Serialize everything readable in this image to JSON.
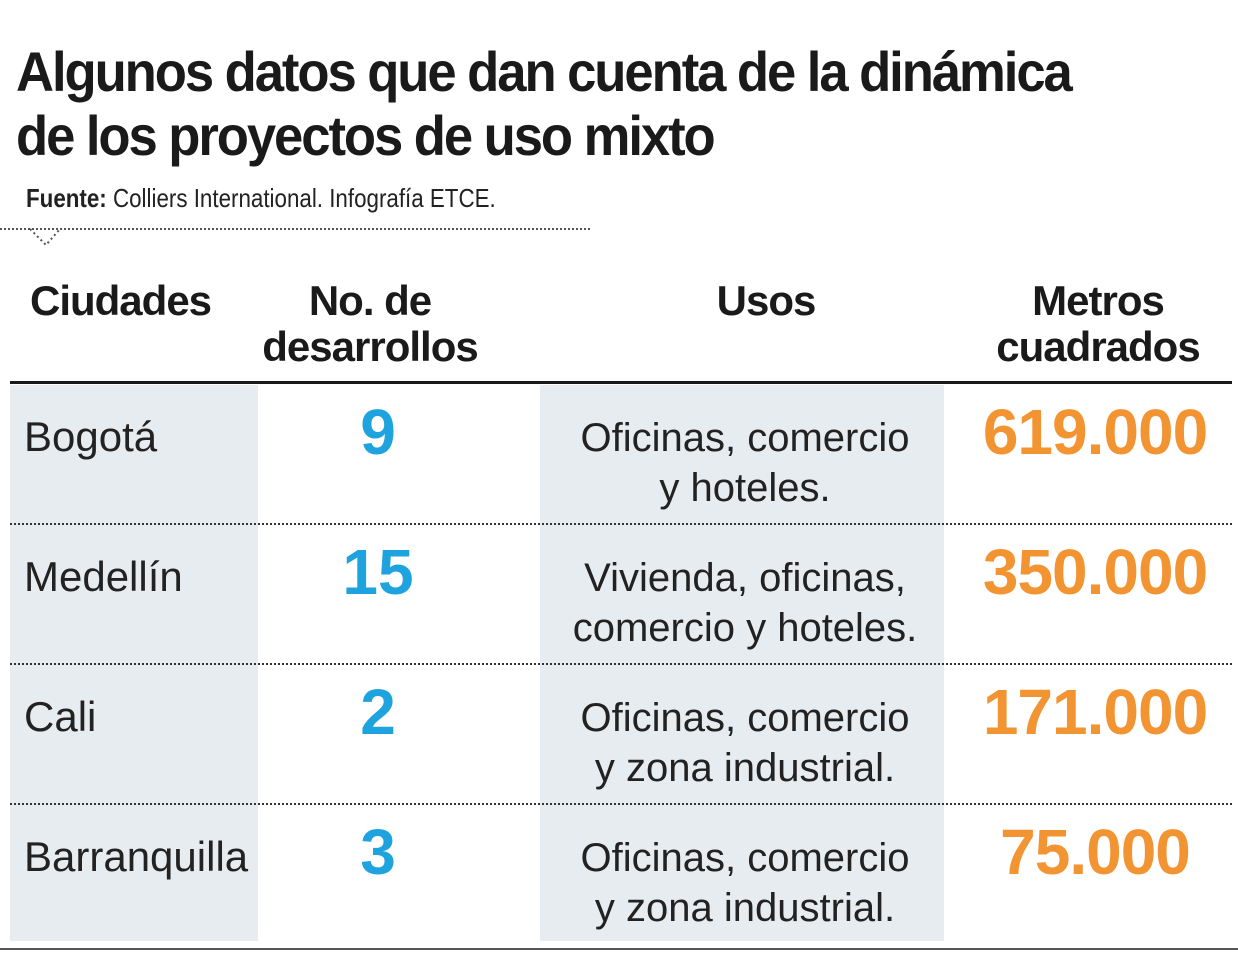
{
  "title": [
    "Algunos datos que dan cuenta de la dinámica",
    "de los proyectos de uso mixto"
  ],
  "source": {
    "label": "Fuente:",
    "text": " Colliers International. Infografía ETCE."
  },
  "colors": {
    "number_blue": "#1ea3de",
    "metros_orange": "#f39433",
    "shade": "#e7ecf0"
  },
  "chart_data": {
    "type": "table",
    "title": "Algunos datos que dan cuenta de la dinámica de los proyectos de uso mixto",
    "columns": [
      [
        "Ciudades"
      ],
      [
        "No. de",
        "desarrollos"
      ],
      [
        "Usos"
      ],
      [
        "Metros",
        "cuadrados"
      ]
    ],
    "rows": [
      {
        "ciudad": "Bogotá",
        "desarrollos": "9",
        "usos": [
          "Oficinas, comercio",
          "y hoteles."
        ],
        "metros": "619.000"
      },
      {
        "ciudad": "Medellín",
        "desarrollos": "15",
        "usos": [
          "Vivienda, oficinas,",
          "comercio y hoteles."
        ],
        "metros": "350.000"
      },
      {
        "ciudad": "Cali",
        "desarrollos": "2",
        "usos": [
          "Oficinas, comercio",
          "y zona industrial."
        ],
        "metros": "171.000"
      },
      {
        "ciudad": "Barranquilla",
        "desarrollos": "3",
        "usos": [
          "Oficinas, comercio",
          "y zona industrial."
        ],
        "metros": "75.000"
      }
    ]
  }
}
